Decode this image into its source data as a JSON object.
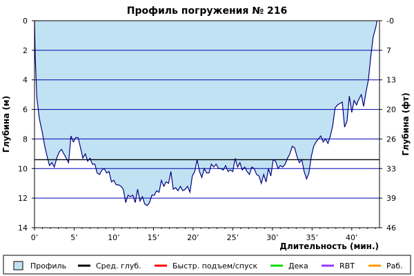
{
  "chart_data": {
    "type": "area",
    "title": "Профиль погружения № 216",
    "xlabel": "Длительность (мин.)",
    "ylabel_left": "Глубина (м)",
    "ylabel_right": "Глубина (фт)",
    "xlim": [
      0,
      43.5
    ],
    "ylim": [
      0,
      14
    ],
    "x_ticks": [
      0,
      5,
      10,
      15,
      20,
      25,
      30,
      35,
      40
    ],
    "x_tick_labels": [
      "0’",
      "5’",
      "10’",
      "15’",
      "20’",
      "25’",
      "30’",
      "35’",
      "40’"
    ],
    "y_ticks": [
      0,
      2,
      4,
      6,
      8,
      10,
      12,
      14
    ],
    "y_tick_labels": [
      "0",
      "2",
      "4",
      "6",
      "8",
      "10",
      "12",
      "14"
    ],
    "y_right_tick_labels": [
      "-0",
      "7",
      "13",
      "20",
      "26",
      "33",
      "39",
      "46"
    ],
    "gridlines_y": [
      2,
      4,
      6,
      8,
      10,
      12
    ],
    "avg_depth": 9.4,
    "colors": {
      "area_fill": "#c1e2f2",
      "profile_line": "#000080",
      "grid": "#0000b0",
      "avg_line": "#000000",
      "fast": "#ff0000",
      "deco": "#00dd00",
      "rbt": "#9933ff",
      "work": "#ff9900"
    },
    "series": [
      {
        "name": "Профиль",
        "points": [
          [
            0.0,
            0.0
          ],
          [
            0.1,
            2.5
          ],
          [
            0.3,
            5.2
          ],
          [
            0.6,
            6.6
          ],
          [
            1.0,
            7.6
          ],
          [
            1.3,
            8.5
          ],
          [
            1.6,
            9.2
          ],
          [
            1.9,
            9.8
          ],
          [
            2.2,
            9.6
          ],
          [
            2.5,
            9.9
          ],
          [
            2.8,
            9.3
          ],
          [
            3.1,
            8.9
          ],
          [
            3.4,
            8.7
          ],
          [
            3.7,
            9.0
          ],
          [
            4.0,
            9.3
          ],
          [
            4.3,
            9.6
          ],
          [
            4.6,
            7.8
          ],
          [
            4.9,
            8.2
          ],
          [
            5.2,
            7.9
          ],
          [
            5.5,
            7.9
          ],
          [
            5.8,
            8.6
          ],
          [
            6.1,
            9.3
          ],
          [
            6.4,
            9.0
          ],
          [
            6.7,
            9.5
          ],
          [
            7.0,
            9.3
          ],
          [
            7.3,
            9.7
          ],
          [
            7.6,
            9.7
          ],
          [
            7.9,
            10.3
          ],
          [
            8.2,
            10.4
          ],
          [
            8.5,
            10.1
          ],
          [
            8.8,
            10.0
          ],
          [
            9.1,
            10.3
          ],
          [
            9.4,
            10.2
          ],
          [
            9.7,
            10.9
          ],
          [
            10.0,
            10.8
          ],
          [
            10.3,
            11.1
          ],
          [
            10.6,
            11.1
          ],
          [
            10.9,
            11.2
          ],
          [
            11.2,
            11.4
          ],
          [
            11.5,
            12.3
          ],
          [
            11.8,
            11.8
          ],
          [
            12.1,
            11.9
          ],
          [
            12.4,
            11.8
          ],
          [
            12.7,
            12.3
          ],
          [
            13.0,
            11.4
          ],
          [
            13.3,
            12.2
          ],
          [
            13.6,
            11.9
          ],
          [
            13.9,
            12.4
          ],
          [
            14.2,
            12.5
          ],
          [
            14.5,
            12.3
          ],
          [
            14.8,
            11.8
          ],
          [
            15.1,
            11.8
          ],
          [
            15.4,
            11.5
          ],
          [
            15.7,
            11.6
          ],
          [
            16.0,
            10.8
          ],
          [
            16.3,
            11.2
          ],
          [
            16.6,
            10.9
          ],
          [
            16.9,
            11.0
          ],
          [
            17.2,
            10.2
          ],
          [
            17.5,
            11.4
          ],
          [
            17.8,
            11.3
          ],
          [
            18.1,
            11.5
          ],
          [
            18.4,
            11.2
          ],
          [
            18.7,
            11.5
          ],
          [
            19.0,
            11.4
          ],
          [
            19.3,
            11.2
          ],
          [
            19.6,
            11.6
          ],
          [
            19.9,
            10.5
          ],
          [
            20.2,
            10.2
          ],
          [
            20.5,
            9.4
          ],
          [
            20.8,
            10.2
          ],
          [
            21.1,
            10.6
          ],
          [
            21.4,
            10.0
          ],
          [
            21.7,
            10.3
          ],
          [
            22.0,
            10.3
          ],
          [
            22.3,
            9.7
          ],
          [
            22.6,
            9.9
          ],
          [
            22.9,
            9.7
          ],
          [
            23.2,
            10.0
          ],
          [
            23.5,
            10.0
          ],
          [
            23.8,
            10.1
          ],
          [
            24.1,
            9.8
          ],
          [
            24.4,
            10.2
          ],
          [
            24.7,
            10.1
          ],
          [
            25.0,
            10.2
          ],
          [
            25.3,
            9.3
          ],
          [
            25.6,
            9.9
          ],
          [
            25.9,
            9.6
          ],
          [
            26.2,
            10.1
          ],
          [
            26.5,
            9.9
          ],
          [
            26.8,
            10.2
          ],
          [
            27.1,
            10.4
          ],
          [
            27.4,
            9.9
          ],
          [
            27.7,
            10.0
          ],
          [
            28.0,
            10.4
          ],
          [
            28.3,
            10.5
          ],
          [
            28.6,
            11.0
          ],
          [
            28.9,
            10.4
          ],
          [
            29.2,
            10.9
          ],
          [
            29.5,
            10.0
          ],
          [
            29.8,
            10.5
          ],
          [
            30.1,
            9.4
          ],
          [
            30.4,
            9.5
          ],
          [
            30.7,
            10.0
          ],
          [
            31.0,
            9.8
          ],
          [
            31.3,
            9.9
          ],
          [
            31.6,
            9.7
          ],
          [
            31.9,
            9.3
          ],
          [
            32.2,
            9.0
          ],
          [
            32.5,
            8.5
          ],
          [
            32.8,
            8.6
          ],
          [
            33.1,
            9.2
          ],
          [
            33.4,
            9.6
          ],
          [
            33.7,
            9.4
          ],
          [
            34.0,
            10.2
          ],
          [
            34.3,
            10.7
          ],
          [
            34.6,
            10.3
          ],
          [
            34.9,
            9.2
          ],
          [
            35.2,
            8.5
          ],
          [
            35.5,
            8.2
          ],
          [
            35.8,
            8.0
          ],
          [
            36.1,
            7.8
          ],
          [
            36.4,
            8.2
          ],
          [
            36.7,
            8.0
          ],
          [
            37.0,
            8.3
          ],
          [
            37.3,
            7.8
          ],
          [
            37.6,
            7.1
          ],
          [
            37.9,
            5.9
          ],
          [
            38.2,
            5.7
          ],
          [
            38.5,
            5.6
          ],
          [
            38.8,
            5.5
          ],
          [
            39.1,
            7.2
          ],
          [
            39.4,
            6.8
          ],
          [
            39.7,
            5.1
          ],
          [
            40.0,
            6.2
          ],
          [
            40.3,
            5.4
          ],
          [
            40.6,
            5.7
          ],
          [
            40.9,
            5.3
          ],
          [
            41.2,
            5.0
          ],
          [
            41.5,
            5.8
          ],
          [
            41.8,
            4.8
          ],
          [
            42.1,
            4.0
          ],
          [
            42.4,
            2.4
          ],
          [
            42.7,
            1.1
          ],
          [
            43.0,
            0.5
          ],
          [
            43.2,
            0.0
          ]
        ]
      }
    ],
    "legend": [
      {
        "label": "Профиль",
        "kind": "box",
        "color": "#c1e2f2"
      },
      {
        "label": "Сред. глуб.",
        "kind": "line",
        "color": "#000000"
      },
      {
        "label": "Быстр. подъем/спуск",
        "kind": "line",
        "color": "#ff0000"
      },
      {
        "label": "Дека",
        "kind": "line",
        "color": "#00dd00"
      },
      {
        "label": "RBT",
        "kind": "line",
        "color": "#9933ff"
      },
      {
        "label": "Раб.",
        "kind": "line",
        "color": "#ff9900"
      }
    ],
    "legend_position": "bottom"
  }
}
